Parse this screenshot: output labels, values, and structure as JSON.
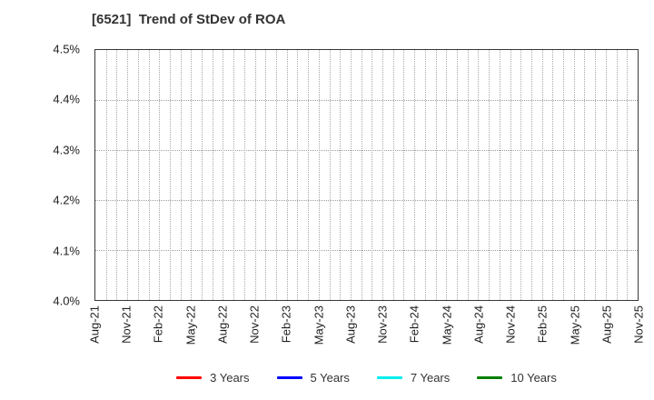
{
  "header": {
    "title": "[6521]  Trend of StDev of ROA"
  },
  "chart_data": {
    "type": "line",
    "title": "[6521]  Trend of StDev of ROA",
    "xlabel": "",
    "ylabel": "",
    "ylim": [
      4.0,
      4.5
    ],
    "y_tick_labels": [
      "4.5%",
      "4.4%",
      "4.3%",
      "4.2%",
      "4.1%",
      "4.0%"
    ],
    "x_tick_labels": [
      "Aug-21",
      "Nov-21",
      "Feb-22",
      "May-22",
      "Aug-22",
      "Nov-22",
      "Feb-23",
      "May-23",
      "Aug-23",
      "Nov-23",
      "Feb-24",
      "May-24",
      "Aug-24",
      "Nov-24",
      "Feb-25",
      "May-25",
      "Aug-25",
      "Nov-25"
    ],
    "x_months_total": 51,
    "x_months_per_tick": 3,
    "grid": {
      "show": true,
      "vertical": "dotted monthly",
      "horizontal": "dotted every 0.1%"
    },
    "legend_position": "bottom-center",
    "series": [
      {
        "name": "3 Years",
        "color": "#ff0000",
        "values": []
      },
      {
        "name": "5 Years",
        "color": "#0000ff",
        "values": []
      },
      {
        "name": "7 Years",
        "color": "#00eeee",
        "values": []
      },
      {
        "name": "10 Years",
        "color": "#007f00",
        "values": []
      }
    ],
    "note": "Plot area is empty: no data lines are drawn, only gridlines."
  },
  "colors": {
    "background": "#ffffff",
    "plot_border": "#3a3a3a",
    "gridline": "#a8a8a8",
    "text": "#222222",
    "title_text": "#333333"
  }
}
